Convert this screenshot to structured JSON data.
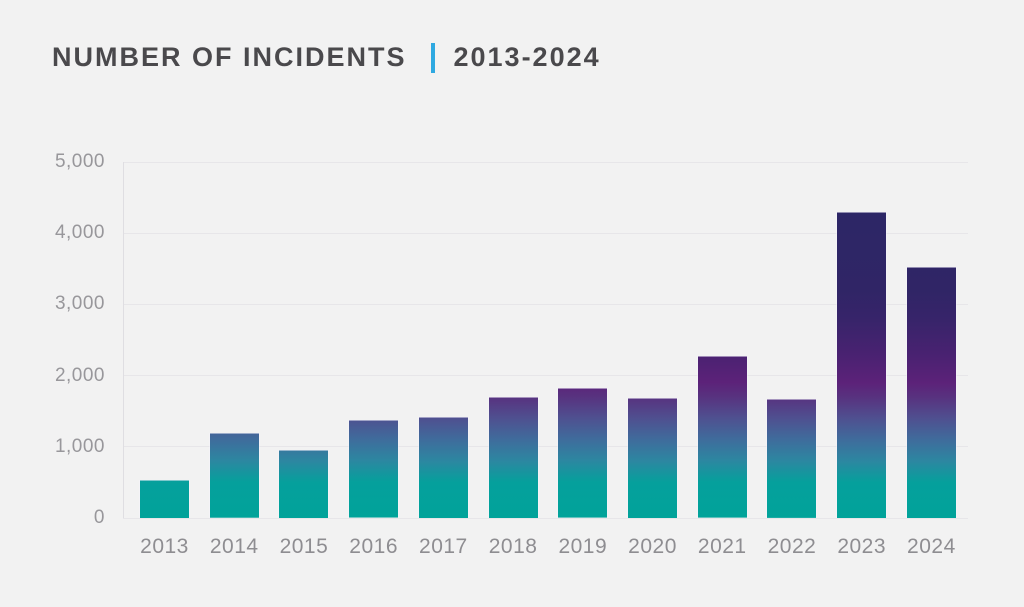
{
  "page": {
    "background_color": "#F2F2F2"
  },
  "header": {
    "title": "NUMBER OF INCIDENTS",
    "subtitle": "2013-2024",
    "separator_color": "#2FA9E1",
    "title_color": "#4A494C"
  },
  "chart_data": {
    "type": "bar",
    "title": "NUMBER OF INCIDENTS 2013-2024",
    "xlabel": "",
    "ylabel": "",
    "categories": [
      "2013",
      "2014",
      "2015",
      "2016",
      "2017",
      "2018",
      "2019",
      "2020",
      "2021",
      "2022",
      "2023",
      "2024"
    ],
    "values": [
      540,
      1190,
      960,
      1370,
      1420,
      1700,
      1820,
      1690,
      2270,
      1670,
      4300,
      3530
    ],
    "ylim": [
      0,
      5000
    ],
    "yticks": [
      {
        "value": 5000,
        "label": "5,000"
      },
      {
        "value": 4000,
        "label": "4,000"
      },
      {
        "value": 3000,
        "label": "3,000"
      },
      {
        "value": 2000,
        "label": "2,000"
      },
      {
        "value": 1000,
        "label": "1,000"
      },
      {
        "value": 0,
        "label": "0"
      }
    ],
    "grid": true,
    "legend": false,
    "colors": {
      "gridline": "#E7E6E9",
      "axis_line": "#DFDEE2",
      "y_tick_label": "#98979B",
      "x_tick_label": "#8E8D91",
      "bar_border": "rgba(245,243,252,0.5)"
    },
    "bar_gradient": {
      "description": "gradient fixed in chart space, from value 0 (bottom) to 5000 (top)",
      "stops": [
        {
          "pos": 0,
          "color": "#01A39A"
        },
        {
          "pos": 10,
          "color": "#05A09C"
        },
        {
          "pos": 16,
          "color": "#2C87A1"
        },
        {
          "pos": 22,
          "color": "#3F6C9C"
        },
        {
          "pos": 28,
          "color": "#4F5090"
        },
        {
          "pos": 34,
          "color": "#58327F"
        },
        {
          "pos": 38,
          "color": "#5C2279"
        },
        {
          "pos": 46,
          "color": "#492271"
        },
        {
          "pos": 56,
          "color": "#37246A"
        },
        {
          "pos": 64,
          "color": "#302566"
        },
        {
          "pos": 100,
          "color": "#2A2765"
        }
      ]
    }
  }
}
